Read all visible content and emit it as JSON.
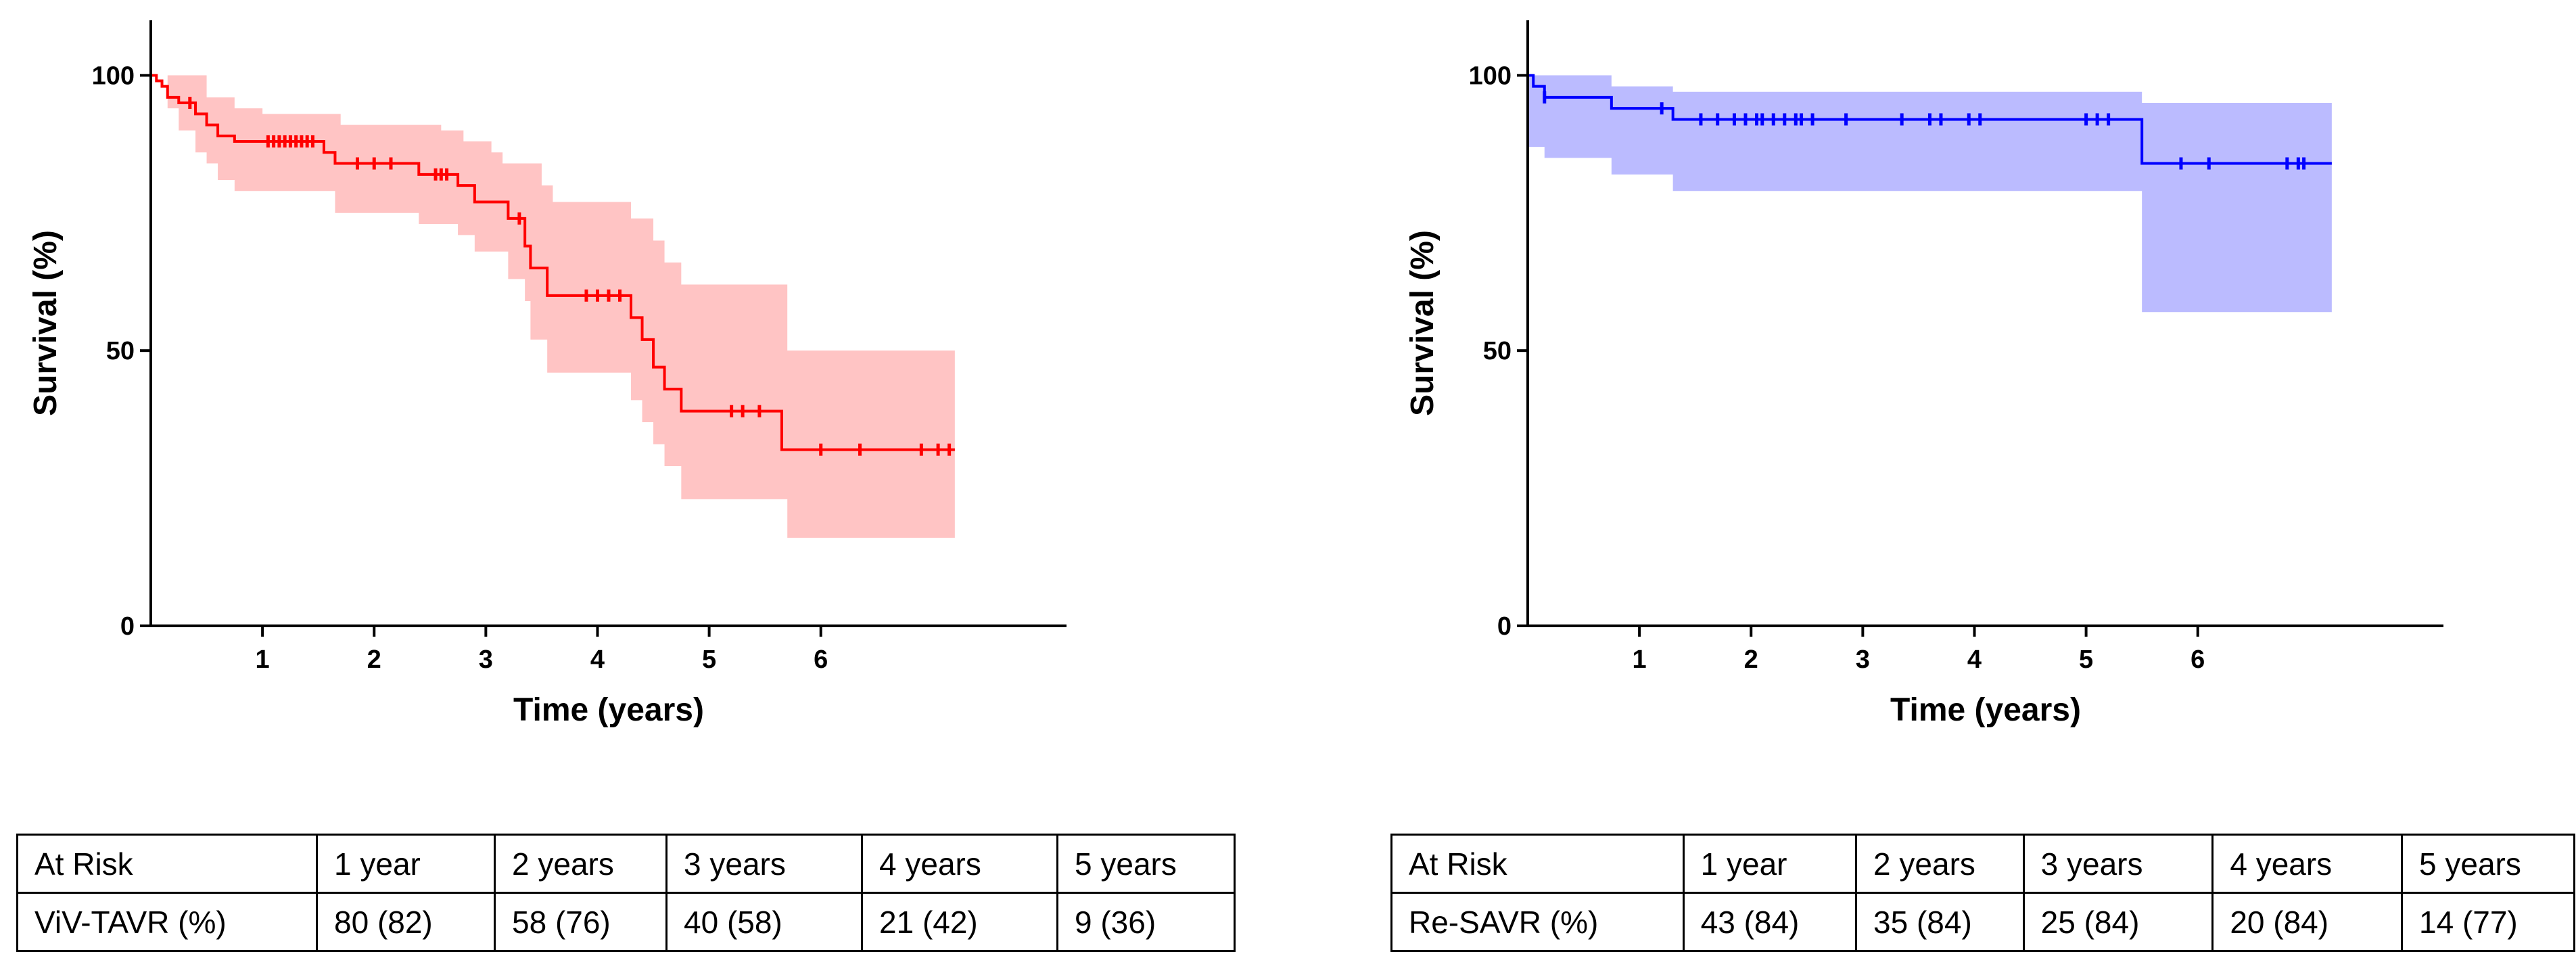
{
  "charts": [
    {
      "type": "line",
      "color": "#ff0000",
      "ci_fill": "#ff9d9d",
      "ci_opacity": 0.6,
      "xlabel": "Time (years)",
      "ylabel": "Survival (%)",
      "xlim": [
        0,
        8.2
      ],
      "ylim": [
        0,
        110
      ],
      "xticks": [
        1,
        2,
        3,
        4,
        5,
        6
      ],
      "yticks": [
        0,
        50,
        100
      ],
      "curve": [
        [
          0.0,
          100
        ],
        [
          0.05,
          99
        ],
        [
          0.1,
          98
        ],
        [
          0.15,
          96
        ],
        [
          0.25,
          95
        ],
        [
          0.4,
          93
        ],
        [
          0.5,
          91
        ],
        [
          0.6,
          89
        ],
        [
          0.75,
          88
        ],
        [
          1.55,
          86
        ],
        [
          1.65,
          84
        ],
        [
          2.4,
          82
        ],
        [
          2.75,
          80
        ],
        [
          2.9,
          77
        ],
        [
          3.2,
          74
        ],
        [
          3.35,
          69
        ],
        [
          3.4,
          65
        ],
        [
          3.55,
          60
        ],
        [
          4.3,
          56
        ],
        [
          4.4,
          52
        ],
        [
          4.5,
          47
        ],
        [
          4.6,
          43
        ],
        [
          4.75,
          39
        ],
        [
          5.65,
          32
        ],
        [
          7.2,
          32
        ]
      ],
      "ci_upper": [
        [
          0.0,
          100
        ],
        [
          0.5,
          96
        ],
        [
          0.75,
          94
        ],
        [
          1.0,
          93
        ],
        [
          1.6,
          93
        ],
        [
          1.7,
          91
        ],
        [
          2.6,
          90
        ],
        [
          2.8,
          88
        ],
        [
          3.05,
          86
        ],
        [
          3.15,
          84
        ],
        [
          3.5,
          80
        ],
        [
          3.6,
          77
        ],
        [
          4.2,
          77
        ],
        [
          4.3,
          74
        ],
        [
          4.5,
          70
        ],
        [
          4.6,
          66
        ],
        [
          4.75,
          62
        ],
        [
          5.65,
          62
        ],
        [
          5.7,
          50
        ],
        [
          7.2,
          50
        ]
      ],
      "ci_lower": [
        [
          0.0,
          100
        ],
        [
          0.15,
          94
        ],
        [
          0.25,
          90
        ],
        [
          0.4,
          86
        ],
        [
          0.5,
          84
        ],
        [
          0.6,
          81
        ],
        [
          0.75,
          79
        ],
        [
          1.55,
          79
        ],
        [
          1.65,
          75
        ],
        [
          2.4,
          73
        ],
        [
          2.75,
          71
        ],
        [
          2.9,
          68
        ],
        [
          3.2,
          63
        ],
        [
          3.35,
          59
        ],
        [
          3.4,
          52
        ],
        [
          3.55,
          46
        ],
        [
          4.2,
          46
        ],
        [
          4.3,
          41
        ],
        [
          4.4,
          37
        ],
        [
          4.5,
          33
        ],
        [
          4.6,
          29
        ],
        [
          4.75,
          23
        ],
        [
          5.65,
          23
        ],
        [
          5.7,
          16
        ],
        [
          7.2,
          16
        ]
      ],
      "censors": [
        [
          0.35,
          95
        ],
        [
          1.05,
          88
        ],
        [
          1.1,
          88
        ],
        [
          1.15,
          88
        ],
        [
          1.2,
          88
        ],
        [
          1.25,
          88
        ],
        [
          1.3,
          88
        ],
        [
          1.35,
          88
        ],
        [
          1.4,
          88
        ],
        [
          1.45,
          88
        ],
        [
          1.85,
          84
        ],
        [
          2.0,
          84
        ],
        [
          2.15,
          84
        ],
        [
          2.55,
          82
        ],
        [
          2.6,
          82
        ],
        [
          2.65,
          82
        ],
        [
          3.3,
          74
        ],
        [
          3.9,
          60
        ],
        [
          4.0,
          60
        ],
        [
          4.1,
          60
        ],
        [
          4.2,
          60
        ],
        [
          5.2,
          39
        ],
        [
          5.3,
          39
        ],
        [
          5.45,
          39
        ],
        [
          6.0,
          32
        ],
        [
          6.35,
          32
        ],
        [
          6.9,
          32
        ],
        [
          7.05,
          32
        ],
        [
          7.15,
          32
        ]
      ]
    },
    {
      "type": "line",
      "color": "#0000ff",
      "ci_fill": "#aaaaff",
      "ci_opacity": 0.8,
      "xlabel": "Time (years)",
      "ylabel": "Survival (%)",
      "xlim": [
        0,
        8.2
      ],
      "ylim": [
        0,
        110
      ],
      "xticks": [
        1,
        2,
        3,
        4,
        5,
        6
      ],
      "yticks": [
        0,
        50,
        100
      ],
      "curve": [
        [
          0.0,
          100
        ],
        [
          0.05,
          98
        ],
        [
          0.15,
          96
        ],
        [
          0.75,
          94
        ],
        [
          1.3,
          92
        ],
        [
          5.45,
          92
        ],
        [
          5.5,
          84
        ],
        [
          7.2,
          84
        ]
      ],
      "ci_upper": [
        [
          0.0,
          100
        ],
        [
          0.75,
          98
        ],
        [
          1.3,
          97
        ],
        [
          5.45,
          97
        ],
        [
          5.5,
          95
        ],
        [
          7.2,
          95
        ]
      ],
      "ci_lower": [
        [
          0.0,
          87
        ],
        [
          0.15,
          85
        ],
        [
          0.75,
          82
        ],
        [
          1.3,
          79
        ],
        [
          5.45,
          79
        ],
        [
          5.5,
          57
        ],
        [
          7.2,
          57
        ]
      ],
      "censors": [
        [
          0.15,
          96
        ],
        [
          1.2,
          94
        ],
        [
          1.55,
          92
        ],
        [
          1.7,
          92
        ],
        [
          1.85,
          92
        ],
        [
          1.95,
          92
        ],
        [
          2.05,
          92
        ],
        [
          2.1,
          92
        ],
        [
          2.2,
          92
        ],
        [
          2.3,
          92
        ],
        [
          2.4,
          92
        ],
        [
          2.45,
          92
        ],
        [
          2.55,
          92
        ],
        [
          2.85,
          92
        ],
        [
          3.35,
          92
        ],
        [
          3.6,
          92
        ],
        [
          3.7,
          92
        ],
        [
          3.95,
          92
        ],
        [
          4.05,
          92
        ],
        [
          5.0,
          92
        ],
        [
          5.1,
          92
        ],
        [
          5.2,
          92
        ],
        [
          5.85,
          84
        ],
        [
          6.1,
          84
        ],
        [
          6.8,
          84
        ],
        [
          6.9,
          84
        ],
        [
          6.95,
          84
        ]
      ]
    }
  ],
  "tables": [
    {
      "header": [
        "At Risk",
        "1 year",
        "2 years",
        "3 years",
        "4 years",
        "5 years"
      ],
      "row": [
        "ViV-TAVR (%)",
        "80 (82)",
        "58 (76)",
        "40 (58)",
        "21 (42)",
        "9 (36)"
      ]
    },
    {
      "header": [
        "At Risk",
        "1 year",
        "2 years",
        "3 years",
        "4 years",
        "5 years"
      ],
      "row": [
        "Re-SAVR (%)",
        "43 (84)",
        "35 (84)",
        "25 (84)",
        "20 (84)",
        "14 (77)"
      ]
    }
  ]
}
